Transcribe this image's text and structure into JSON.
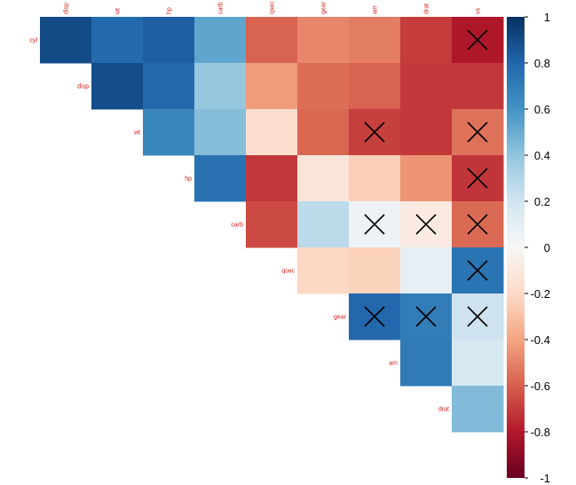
{
  "chart_data": {
    "type": "heatmap",
    "title": "",
    "columns": [
      "disp",
      "wt",
      "hp",
      "carb",
      "qsec",
      "gear",
      "am",
      "drat",
      "vs"
    ],
    "rows": [
      "cyl",
      "disp",
      "wt",
      "hp",
      "carb",
      "qsec",
      "gear",
      "am",
      "drat"
    ],
    "values": [
      [
        0.9,
        0.78,
        0.83,
        0.53,
        -0.59,
        -0.49,
        -0.52,
        -0.7,
        -0.81
      ],
      [
        null,
        0.89,
        0.79,
        0.39,
        -0.43,
        -0.56,
        -0.59,
        -0.71,
        -0.71
      ],
      [
        null,
        null,
        0.66,
        0.43,
        -0.17,
        -0.58,
        -0.69,
        -0.71,
        -0.55
      ],
      [
        null,
        null,
        null,
        0.75,
        -0.71,
        -0.13,
        -0.24,
        -0.45,
        -0.72
      ],
      [
        null,
        null,
        null,
        null,
        -0.66,
        0.27,
        0.06,
        -0.09,
        -0.57
      ],
      [
        null,
        null,
        null,
        null,
        null,
        -0.21,
        -0.23,
        0.09,
        0.74
      ],
      [
        null,
        null,
        null,
        null,
        null,
        null,
        0.79,
        0.7,
        0.21
      ],
      [
        null,
        null,
        null,
        null,
        null,
        null,
        null,
        0.71,
        0.17
      ],
      [
        null,
        null,
        null,
        null,
        null,
        null,
        null,
        null,
        0.44
      ]
    ],
    "crossed_out": [
      [
        0,
        8
      ],
      [
        2,
        6
      ],
      [
        2,
        8
      ],
      [
        3,
        8
      ],
      [
        4,
        6
      ],
      [
        4,
        7
      ],
      [
        4,
        8
      ],
      [
        5,
        8
      ],
      [
        6,
        6
      ],
      [
        6,
        7
      ],
      [
        6,
        8
      ]
    ],
    "colorbar": {
      "range": [
        -1,
        1
      ],
      "ticks": [
        "1",
        "0.8",
        "0.6",
        "0.4",
        "0.2",
        "0",
        "-0.2",
        "-0.4",
        "-0.6",
        "-0.8",
        "-1"
      ]
    },
    "colors": {
      "negative_end": "#67001f",
      "positive_end": "#053061",
      "label_color": "#d11a1a"
    }
  }
}
